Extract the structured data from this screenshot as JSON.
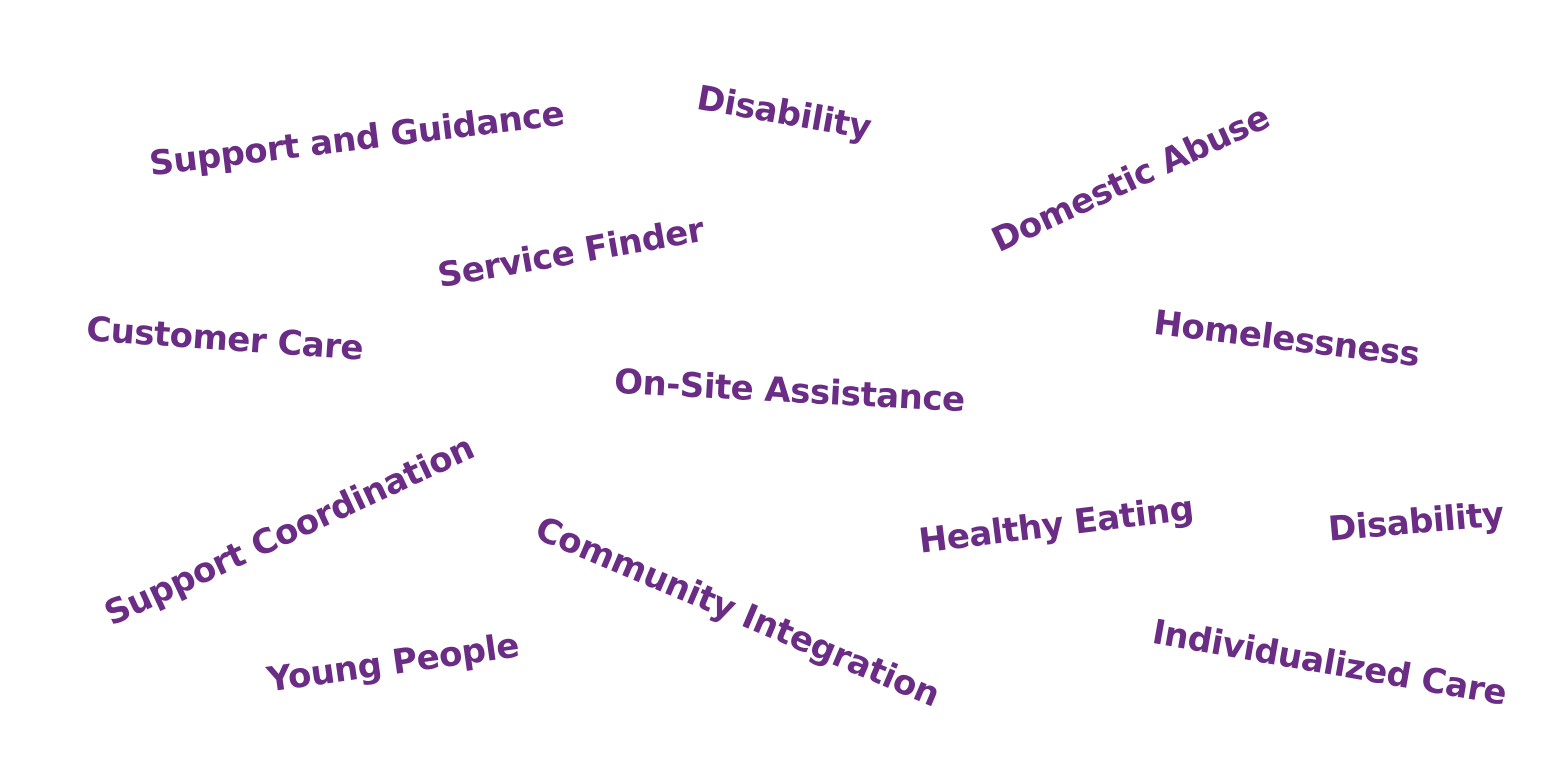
{
  "accent_color": "#6a2c84",
  "words": {
    "support_and_guidance": "Support and Guidance",
    "disability_top": "Disability",
    "domestic_abuse": "Domestic Abuse",
    "service_finder": "Service Finder",
    "customer_care": "Customer Care",
    "homelessness": "Homelessness",
    "on_site_assistance": "On-Site Assistance",
    "support_coordination": "Support Coordination",
    "community_integration": "Community Integration",
    "healthy_eating": "Healthy Eating",
    "disability_right": "Disability",
    "young_people": "Young People",
    "individualized_care": "Individualized Care"
  }
}
